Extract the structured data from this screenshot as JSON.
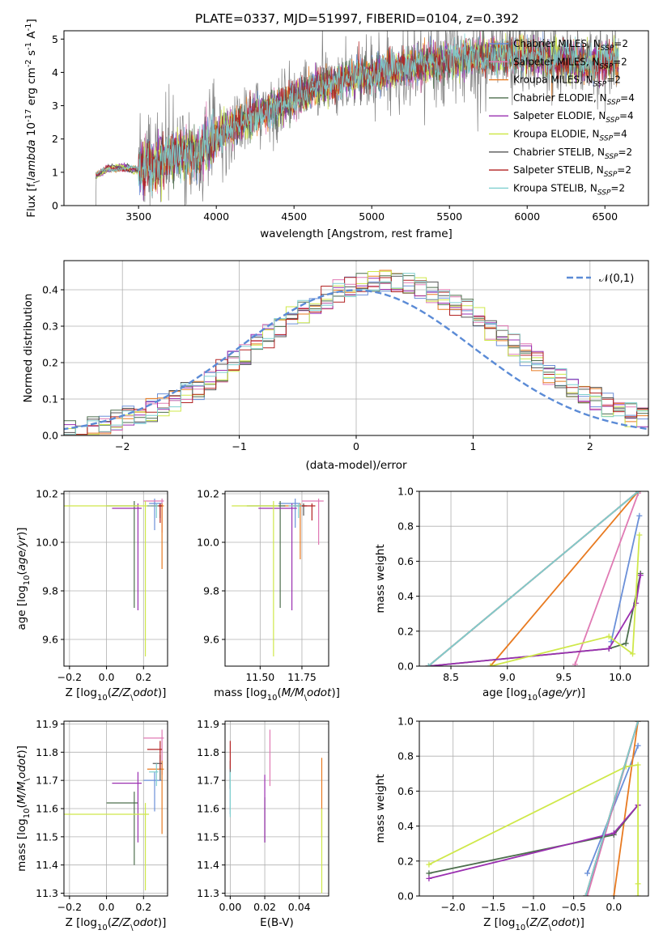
{
  "chart_data": [
    {
      "type": "line",
      "panel": "spectrum",
      "title": "PLATE=0337, MJD=51997, FIBERID=0104, z=0.392",
      "xlabel": "wavelength [Angstrom, rest frame]",
      "ylabel": "Flux [f$_\\lambda$ 10$^{-17}$ erg cm$^{-2}$ s$^{-1}$ A$^{-1}$]",
      "xlim": [
        3020,
        6780
      ],
      "ylim": [
        0,
        5.25
      ],
      "xticks": [
        3500,
        4000,
        4500,
        5000,
        5500,
        6000,
        6500
      ],
      "yticks": [
        0,
        1,
        2,
        3,
        4,
        5
      ],
      "grid": false,
      "legend_position": "right",
      "spectrum_start": 3225,
      "spectrum_end": 6590,
      "continuum": [
        {
          "x": 3225,
          "y": 0.9
        },
        {
          "x": 3300,
          "y": 1.1
        },
        {
          "x": 3400,
          "y": 1.15
        },
        {
          "x": 3500,
          "y": 1.05
        },
        {
          "x": 3600,
          "y": 1.25
        },
        {
          "x": 3700,
          "y": 1.45
        },
        {
          "x": 3800,
          "y": 1.55
        },
        {
          "x": 3900,
          "y": 1.55
        },
        {
          "x": 4000,
          "y": 2.1
        },
        {
          "x": 4200,
          "y": 2.6
        },
        {
          "x": 4400,
          "y": 3.0
        },
        {
          "x": 4600,
          "y": 3.45
        },
        {
          "x": 4800,
          "y": 3.8
        },
        {
          "x": 5000,
          "y": 3.95
        },
        {
          "x": 5200,
          "y": 4.1
        },
        {
          "x": 5400,
          "y": 4.3
        },
        {
          "x": 5600,
          "y": 4.45
        },
        {
          "x": 5800,
          "y": 4.5
        },
        {
          "x": 6000,
          "y": 4.5
        },
        {
          "x": 6200,
          "y": 4.4
        },
        {
          "x": 6400,
          "y": 4.25
        },
        {
          "x": 6590,
          "y": 4.4
        }
      ],
      "series": [
        {
          "name": "Chabrier MILES, N$_{SSP}$=2",
          "color": "#6a8fd8"
        },
        {
          "name": "Salpeter MILES, N$_{SSP}$=2",
          "color": "#e07ab4"
        },
        {
          "name": "Kroupa MILES, N$_{SSP}$=2",
          "color": "#e87a20"
        },
        {
          "name": "Chabrier ELODIE, N$_{SSP}$=4",
          "color": "#4d6f4d"
        },
        {
          "name": "Salpeter ELODIE, N$_{SSP}$=4",
          "color": "#9a2fb0"
        },
        {
          "name": "Kroupa ELODIE, N$_{SSP}$=4",
          "color": "#cfe84a"
        },
        {
          "name": "Chabrier STELIB, N$_{SSP}$=2",
          "color": "#555555"
        },
        {
          "name": "Salpeter STELIB, N$_{SSP}$=2",
          "color": "#b22222"
        },
        {
          "name": "Kroupa STELIB, N$_{SSP}$=2",
          "color": "#7fcfcf"
        }
      ]
    },
    {
      "type": "histogram",
      "panel": "residuals",
      "xlabel": "(data-model)/error",
      "ylabel": "Normed distribution",
      "xlim": [
        -2.5,
        2.5
      ],
      "ylim": [
        0,
        0.48
      ],
      "xticks": [
        -2,
        -1,
        0,
        1,
        2
      ],
      "yticks": [
        0.0,
        0.1,
        0.2,
        0.3,
        0.4
      ],
      "grid": true,
      "bin_width": 0.1,
      "bins_from": -2.5,
      "bins_to": 2.5,
      "reference_curve": {
        "name": "$\\mathcal{N}(0,1)$",
        "mean": 0,
        "sigma": 1,
        "color": "#5b8bd6",
        "style": "dashed"
      },
      "legend_position": "top-right"
    },
    {
      "type": "errorbar",
      "panel": "age-vs-Z",
      "xlabel": "Z [log$_{10}$($Z/Z_\\odot$)]",
      "ylabel": "age  [log$_{10}$($age/yr$)]",
      "xlim": [
        -0.23,
        0.33
      ],
      "ylim": [
        9.49,
        10.21
      ],
      "xticks": [
        -0.2,
        0.0,
        0.2
      ],
      "yticks": [
        9.6,
        9.8,
        10.0,
        10.2
      ],
      "grid": true,
      "points": [
        {
          "series": 0,
          "x": 0.26,
          "y": 10.16,
          "xerr": [
            0.03,
            0.04
          ],
          "yerr": [
            0.11,
            0.02
          ]
        },
        {
          "series": 1,
          "x": 0.3,
          "y": 10.17,
          "xerr": [
            0.1,
            0.01
          ],
          "yerr": [
            0.13,
            0.01
          ]
        },
        {
          "series": 2,
          "x": 0.3,
          "y": 10.15,
          "xerr": [
            0.08,
            0.01
          ],
          "yerr": [
            0.26,
            0.01
          ]
        },
        {
          "series": 3,
          "x": 0.15,
          "y": 10.15,
          "xerr": [
            0.15,
            0.02
          ],
          "yerr": [
            0.42,
            0.02
          ]
        },
        {
          "series": 4,
          "x": 0.17,
          "y": 10.14,
          "xerr": [
            0.14,
            0.02
          ],
          "yerr": [
            0.42,
            0.02
          ]
        },
        {
          "series": 5,
          "x": 0.21,
          "y": 10.15,
          "xerr": [
            0.44,
            0.02
          ],
          "yerr": [
            0.62,
            0.02
          ]
        },
        {
          "series": 6,
          "x": 0.29,
          "y": 10.15,
          "xerr": [
            0.05,
            0.01
          ],
          "yerr": [
            0.05,
            0.01
          ]
        },
        {
          "series": 7,
          "x": 0.29,
          "y": 10.15,
          "xerr": [
            0.07,
            0.01
          ],
          "yerr": [
            0.07,
            0.01
          ]
        },
        {
          "series": 8,
          "x": 0.27,
          "y": 10.15,
          "xerr": [
            0.05,
            0.01
          ],
          "yerr": [
            0.05,
            0.01
          ]
        }
      ]
    },
    {
      "type": "errorbar",
      "panel": "age-vs-mass",
      "xlabel": "mass [log$_{10}$($M/M_\\odot$)]",
      "ylabel": "",
      "xlim": [
        11.29,
        11.91
      ],
      "ylim": [
        9.49,
        10.21
      ],
      "xticks": [
        11.5,
        11.75
      ],
      "yticks": [
        9.6,
        9.8,
        10.0,
        10.2
      ],
      "grid": true,
      "points": [
        {
          "series": 0,
          "x": 11.71,
          "y": 10.16,
          "xerr": [
            0.1,
            0.03
          ],
          "yerr": [
            0.1,
            0.02
          ]
        },
        {
          "series": 1,
          "x": 11.85,
          "y": 10.17,
          "xerr": [
            0.1,
            0.03
          ],
          "yerr": [
            0.18,
            0.01
          ]
        },
        {
          "series": 2,
          "x": 11.74,
          "y": 10.15,
          "xerr": [
            0.1,
            0.03
          ],
          "yerr": [
            0.22,
            0.01
          ]
        },
        {
          "series": 3,
          "x": 11.62,
          "y": 10.15,
          "xerr": [
            0.2,
            0.03
          ],
          "yerr": [
            0.42,
            0.02
          ]
        },
        {
          "series": 4,
          "x": 11.69,
          "y": 10.14,
          "xerr": [
            0.2,
            0.03
          ],
          "yerr": [
            0.42,
            0.02
          ]
        },
        {
          "series": 5,
          "x": 11.58,
          "y": 10.15,
          "xerr": [
            0.25,
            0.03
          ],
          "yerr": [
            0.62,
            0.02
          ]
        },
        {
          "series": 6,
          "x": 11.76,
          "y": 10.15,
          "xerr": [
            0.06,
            0.02
          ],
          "yerr": [
            0.04,
            0.01
          ]
        },
        {
          "series": 7,
          "x": 11.81,
          "y": 10.15,
          "xerr": [
            0.07,
            0.02
          ],
          "yerr": [
            0.06,
            0.01
          ]
        },
        {
          "series": 8,
          "x": 11.73,
          "y": 10.15,
          "xerr": [
            0.06,
            0.02
          ],
          "yerr": [
            0.05,
            0.01
          ]
        }
      ]
    },
    {
      "type": "line",
      "panel": "mass-weight-vs-age",
      "xlabel": "age  [log$_{10}$($age/yr$)]",
      "ylabel": "mass weight",
      "xlim": [
        8.22,
        10.25
      ],
      "ylim": [
        0,
        1
      ],
      "xticks": [
        8.5,
        9.0,
        9.5,
        10.0
      ],
      "yticks": [
        0.0,
        0.2,
        0.4,
        0.6,
        0.8,
        1.0
      ],
      "grid": true,
      "series": [
        {
          "series": 0,
          "points": [
            [
              9.92,
              0.14
            ],
            [
              10.17,
              0.86
            ]
          ]
        },
        {
          "series": 1,
          "points": [
            [
              9.6,
              0.01
            ],
            [
              10.16,
              0.99
            ]
          ]
        },
        {
          "series": 2,
          "points": [
            [
              8.85,
              0.0
            ],
            [
              10.16,
              1.0
            ]
          ]
        },
        {
          "series": 3,
          "points": [
            [
              8.3,
              0.0
            ],
            [
              9.9,
              0.1
            ],
            [
              10.05,
              0.13
            ],
            [
              10.18,
              0.53
            ]
          ]
        },
        {
          "series": 4,
          "points": [
            [
              8.3,
              0.0
            ],
            [
              9.9,
              0.1
            ],
            [
              10.14,
              0.36
            ],
            [
              10.18,
              0.52
            ]
          ]
        },
        {
          "series": 5,
          "points": [
            [
              8.85,
              0.0
            ],
            [
              9.9,
              0.17
            ],
            [
              10.11,
              0.07
            ],
            [
              10.17,
              0.75
            ]
          ]
        },
        {
          "series": 6,
          "points": [
            [
              8.3,
              0.0
            ],
            [
              10.16,
              1.0
            ]
          ]
        },
        {
          "series": 7,
          "points": [
            [
              8.3,
              0.0
            ],
            [
              10.16,
              1.0
            ]
          ]
        },
        {
          "series": 8,
          "points": [
            [
              8.3,
              0.0
            ],
            [
              10.16,
              1.0
            ]
          ]
        }
      ]
    },
    {
      "type": "errorbar",
      "panel": "mass-vs-Z",
      "xlabel": "Z [log$_{10}$($Z/Z_\\odot$)]",
      "ylabel": "mass [log$_{10}$($M/M_\\odot$)]",
      "xlim": [
        -0.23,
        0.33
      ],
      "ylim": [
        11.29,
        11.91
      ],
      "xticks": [
        -0.2,
        0.0,
        0.2
      ],
      "yticks": [
        11.3,
        11.4,
        11.5,
        11.6,
        11.7,
        11.8,
        11.9
      ],
      "grid": true,
      "points": [
        {
          "series": 0,
          "x": 0.26,
          "y": 11.7,
          "xerr": [
            0.06,
            0.04
          ],
          "yerr": [
            0.11,
            0.03
          ]
        },
        {
          "series": 1,
          "x": 0.3,
          "y": 11.85,
          "xerr": [
            0.1,
            0.01
          ],
          "yerr": [
            0.13,
            0.03
          ]
        },
        {
          "series": 2,
          "x": 0.3,
          "y": 11.74,
          "xerr": [
            0.08,
            0.01
          ],
          "yerr": [
            0.23,
            0.03
          ]
        },
        {
          "series": 3,
          "x": 0.15,
          "y": 11.62,
          "xerr": [
            0.15,
            0.02
          ],
          "yerr": [
            0.22,
            0.04
          ]
        },
        {
          "series": 4,
          "x": 0.17,
          "y": 11.69,
          "xerr": [
            0.14,
            0.02
          ],
          "yerr": [
            0.21,
            0.04
          ]
        },
        {
          "series": 5,
          "x": 0.21,
          "y": 11.58,
          "xerr": [
            0.44,
            0.02
          ],
          "yerr": [
            0.27,
            0.04
          ]
        },
        {
          "series": 6,
          "x": 0.29,
          "y": 11.76,
          "xerr": [
            0.04,
            0.01
          ],
          "yerr": [
            0.06,
            0.03
          ]
        },
        {
          "series": 7,
          "x": 0.29,
          "y": 11.81,
          "xerr": [
            0.07,
            0.01
          ],
          "yerr": [
            0.07,
            0.03
          ]
        },
        {
          "series": 8,
          "x": 0.27,
          "y": 11.73,
          "xerr": [
            0.04,
            0.01
          ],
          "yerr": [
            0.05,
            0.03
          ]
        }
      ]
    },
    {
      "type": "errorbar",
      "panel": "mass-vs-EBV",
      "xlabel": "E(B-V)",
      "ylabel": "",
      "xlim": [
        -0.003,
        0.057
      ],
      "ylim": [
        11.29,
        11.91
      ],
      "xticks": [
        0.0,
        0.02,
        0.04
      ],
      "yticks": [
        11.3,
        11.4,
        11.5,
        11.6,
        11.7,
        11.8,
        11.9
      ],
      "grid": true,
      "points": [
        {
          "series": 0,
          "x": 0.0,
          "y": 11.66,
          "xerr": [
            0,
            0
          ],
          "yerr": [
            0.08,
            0.08
          ]
        },
        {
          "series": 1,
          "x": 0.023,
          "y": 11.78,
          "xerr": [
            0,
            0
          ],
          "yerr": [
            0.1,
            0.1
          ]
        },
        {
          "series": 2,
          "x": 0.053,
          "y": 11.64,
          "xerr": [
            0,
            0
          ],
          "yerr": [
            0.14,
            0.14
          ]
        },
        {
          "series": 3,
          "x": 0.02,
          "y": 11.56,
          "xerr": [
            0,
            0
          ],
          "yerr": [
            0.08,
            0.08
          ]
        },
        {
          "series": 4,
          "x": 0.02,
          "y": 11.6,
          "xerr": [
            0,
            0
          ],
          "yerr": [
            0.12,
            0.12
          ]
        },
        {
          "series": 5,
          "x": 0.053,
          "y": 11.45,
          "xerr": [
            0,
            0
          ],
          "yerr": [
            0.15,
            0.15
          ]
        },
        {
          "series": 6,
          "x": 0.0,
          "y": 11.72,
          "xerr": [
            0,
            0
          ],
          "yerr": [
            0.05,
            0.05
          ]
        },
        {
          "series": 7,
          "x": 0.0,
          "y": 11.79,
          "xerr": [
            0,
            0
          ],
          "yerr": [
            0.05,
            0.05
          ]
        },
        {
          "series": 8,
          "x": 0.0,
          "y": 11.65,
          "xerr": [
            0,
            0
          ],
          "yerr": [
            0.08,
            0.08
          ]
        }
      ]
    },
    {
      "type": "line",
      "panel": "mass-weight-vs-Z",
      "xlabel": "Z [log$_{10}$($Z/Z_\\odot$)]",
      "ylabel": "mass weight",
      "xlim": [
        -2.42,
        0.43
      ],
      "ylim": [
        0,
        1
      ],
      "xticks": [
        -2.0,
        -1.5,
        -1.0,
        -0.5,
        0.0
      ],
      "yticks": [
        0.0,
        0.2,
        0.4,
        0.6,
        0.8,
        1.0
      ],
      "grid": true,
      "series": [
        {
          "series": 0,
          "points": [
            [
              -0.33,
              0.13
            ],
            [
              0.3,
              0.86
            ]
          ]
        },
        {
          "series": 1,
          "points": [
            [
              -0.33,
              0.0
            ],
            [
              0.3,
              1.0
            ]
          ]
        },
        {
          "series": 2,
          "points": [
            [
              0.0,
              0.0
            ],
            [
              0.3,
              1.0
            ]
          ]
        },
        {
          "series": 3,
          "points": [
            [
              -2.3,
              0.13
            ],
            [
              0.0,
              0.35
            ],
            [
              0.3,
              0.52
            ]
          ]
        },
        {
          "series": 4,
          "points": [
            [
              -2.3,
              0.1
            ],
            [
              0.0,
              0.36
            ],
            [
              0.3,
              0.52
            ]
          ]
        },
        {
          "series": 5,
          "points": [
            [
              -2.3,
              0.18
            ],
            [
              0.15,
              0.74
            ],
            [
              0.3,
              0.75
            ],
            [
              0.3,
              0.07
            ],
            [
              0.3,
              0.0
            ]
          ]
        },
        {
          "series": 6,
          "points": [
            [
              -0.35,
              0.0
            ],
            [
              0.3,
              1.0
            ]
          ]
        },
        {
          "series": 7,
          "points": [
            [
              -0.35,
              0.0
            ],
            [
              0.3,
              1.0
            ]
          ]
        },
        {
          "series": 8,
          "points": [
            [
              -0.35,
              0.0
            ],
            [
              0.3,
              1.0
            ]
          ]
        }
      ]
    }
  ]
}
